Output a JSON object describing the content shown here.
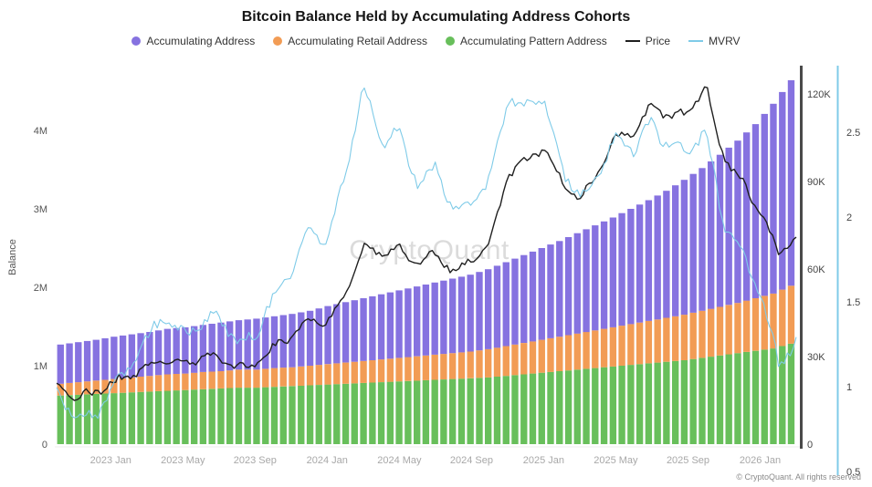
{
  "title": "Bitcoin Balance Held by Accumulating Address Cohorts",
  "watermark": "CryptoQuant",
  "footer": "© CryptoQuant. All rights reserved",
  "legend": {
    "items": [
      {
        "label": "Accumulating Address",
        "color": "#8672e0",
        "marker": "dot"
      },
      {
        "label": "Accumulating Retail Address",
        "color": "#f29c55",
        "marker": "dot"
      },
      {
        "label": "Accumulating Pattern Address",
        "color": "#68bf5b",
        "marker": "dot"
      },
      {
        "label": "Price",
        "color": "#1f1f1f",
        "marker": "line"
      },
      {
        "label": "MVRV",
        "color": "#7fcbe8",
        "marker": "line"
      }
    ]
  },
  "axes": {
    "left": {
      "label": "Balance",
      "ticks": [
        "0",
        "1M",
        "2M",
        "3M",
        "4M"
      ]
    },
    "price": {
      "ticks": [
        "0",
        "30K",
        "60K",
        "90K",
        "120K"
      ]
    },
    "mvrv": {
      "ticks": [
        "0.5",
        "1",
        "1.5",
        "2",
        "2.5"
      ]
    },
    "x": {
      "labels": [
        "2023 Jan",
        "2023 May",
        "2023 Sep",
        "2024 Jan",
        "2024 May",
        "2024 Sep",
        "2025 Jan",
        "2025 May",
        "2025 Sep",
        "2026 Jan"
      ],
      "positions": [
        3,
        7,
        11,
        15,
        19,
        23,
        27,
        31,
        35,
        39
      ]
    }
  },
  "chart_data": {
    "type": "bar",
    "stacked": true,
    "title": "Bitcoin Balance Held by Accumulating Address Cohorts",
    "ylabel": "Balance",
    "legend_position": "top",
    "grid": false,
    "axis_ranges": {
      "balance_millions": [
        0,
        4.8
      ],
      "price_thousands_usd": [
        0,
        130
      ],
      "mvrv": [
        0.5,
        2.8
      ]
    },
    "x": [
      "2022-10",
      "2022-11",
      "2022-12",
      "2023-01",
      "2023-02",
      "2023-03",
      "2023-04",
      "2023-05",
      "2023-06",
      "2023-07",
      "2023-08",
      "2023-09",
      "2023-10",
      "2023-11",
      "2023-12",
      "2024-01",
      "2024-02",
      "2024-03",
      "2024-04",
      "2024-05",
      "2024-06",
      "2024-07",
      "2024-08",
      "2024-09",
      "2024-10",
      "2024-11",
      "2024-12",
      "2025-01",
      "2025-02",
      "2025-03",
      "2025-04",
      "2025-05",
      "2025-06",
      "2025-07",
      "2025-08",
      "2025-09",
      "2025-10",
      "2025-11",
      "2025-12",
      "2026-01",
      "2026-02",
      "2026-03"
    ],
    "stack_order": [
      "Accumulating Pattern Address",
      "Accumulating Retail Address",
      "Accumulating Address"
    ],
    "series": [
      {
        "name": "Accumulating Pattern Address",
        "axis": "balance",
        "unit": "M",
        "style": "bar",
        "color": "#68bf5b",
        "values": [
          0.62,
          0.63,
          0.64,
          0.65,
          0.66,
          0.67,
          0.68,
          0.69,
          0.7,
          0.71,
          0.72,
          0.72,
          0.73,
          0.74,
          0.75,
          0.76,
          0.77,
          0.78,
          0.79,
          0.8,
          0.81,
          0.82,
          0.83,
          0.84,
          0.85,
          0.87,
          0.89,
          0.91,
          0.93,
          0.95,
          0.97,
          0.99,
          1.01,
          1.03,
          1.05,
          1.07,
          1.1,
          1.13,
          1.16,
          1.19,
          1.22,
          1.28
        ]
      },
      {
        "name": "Accumulating Retail Address",
        "axis": "balance",
        "unit": "M",
        "style": "bar",
        "color": "#f29c55",
        "values": [
          0.15,
          0.16,
          0.17,
          0.18,
          0.19,
          0.2,
          0.21,
          0.21,
          0.22,
          0.22,
          0.23,
          0.23,
          0.24,
          0.24,
          0.25,
          0.26,
          0.27,
          0.28,
          0.29,
          0.3,
          0.31,
          0.32,
          0.33,
          0.34,
          0.36,
          0.38,
          0.4,
          0.42,
          0.44,
          0.46,
          0.48,
          0.5,
          0.52,
          0.54,
          0.56,
          0.58,
          0.6,
          0.62,
          0.64,
          0.67,
          0.7,
          0.74
        ]
      },
      {
        "name": "Accumulating Address",
        "axis": "balance",
        "unit": "M",
        "style": "bar",
        "color": "#8672e0",
        "values": [
          0.5,
          0.51,
          0.52,
          0.54,
          0.55,
          0.56,
          0.58,
          0.59,
          0.6,
          0.62,
          0.63,
          0.65,
          0.66,
          0.68,
          0.7,
          0.74,
          0.77,
          0.8,
          0.83,
          0.86,
          0.89,
          0.92,
          0.95,
          0.98,
          1.02,
          1.07,
          1.12,
          1.17,
          1.22,
          1.28,
          1.34,
          1.4,
          1.47,
          1.54,
          1.62,
          1.72,
          1.82,
          1.94,
          2.07,
          2.22,
          2.42,
          2.62
        ]
      },
      {
        "name": "Price",
        "axis": "price",
        "unit": "K",
        "style": "line",
        "color": "#1f1f1f",
        "values": [
          19,
          17,
          17,
          21,
          23,
          27,
          29,
          27,
          30,
          29,
          26,
          27,
          33,
          37,
          43,
          42,
          51,
          68,
          65,
          67,
          62,
          65,
          59,
          63,
          69,
          92,
          97,
          102,
          90,
          83,
          93,
          105,
          107,
          116,
          112,
          114,
          122,
          98,
          90,
          80,
          66,
          70
        ]
      },
      {
        "name": "MVRV",
        "axis": "mvrv",
        "unit": "",
        "style": "line",
        "color": "#7fcbe8",
        "values": [
          0.95,
          0.82,
          0.8,
          0.97,
          1.1,
          1.28,
          1.42,
          1.3,
          1.38,
          1.42,
          1.25,
          1.3,
          1.52,
          1.7,
          1.92,
          1.85,
          2.25,
          2.75,
          2.45,
          2.5,
          2.2,
          2.3,
          2.02,
          2.08,
          2.2,
          2.7,
          2.65,
          2.7,
          2.3,
          2.1,
          2.25,
          2.45,
          2.4,
          2.55,
          2.4,
          2.4,
          2.5,
          1.95,
          1.8,
          1.55,
          1.15,
          1.25
        ]
      }
    ],
    "render": {
      "bar_count": 83,
      "line_points": 250,
      "noise": {
        "Price": 2.2,
        "MVRV": 0.06
      }
    }
  }
}
